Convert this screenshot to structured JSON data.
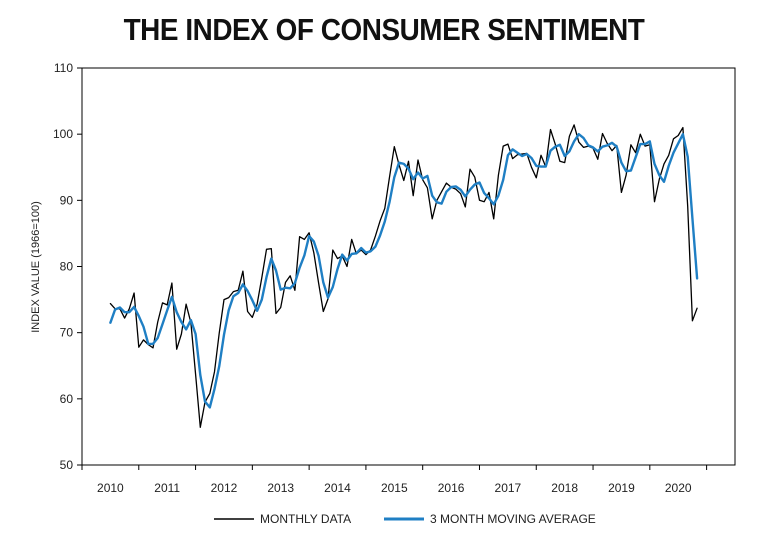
{
  "chart_data": {
    "type": "line",
    "title": "THE INDEX OF CONSUMER SENTIMENT",
    "xlabel": "",
    "ylabel": "INDEX VALUE (1966=100)",
    "ylim": [
      50,
      110
    ],
    "yticks": [
      50,
      60,
      70,
      80,
      90,
      100,
      110
    ],
    "xlim": [
      2009.5,
      2021.0
    ],
    "xticks": [
      2010,
      2011,
      2012,
      2013,
      2014,
      2015,
      2016,
      2017,
      2018,
      2019,
      2020
    ],
    "grid": false,
    "legend_position": "bottom-center",
    "series": [
      {
        "name": "MONTHLY DATA",
        "color": "#000000",
        "x": [
          2010.0,
          2010.083,
          2010.167,
          2010.25,
          2010.333,
          2010.417,
          2010.5,
          2010.583,
          2010.667,
          2010.75,
          2010.833,
          2010.917,
          2011.0,
          2011.083,
          2011.167,
          2011.25,
          2011.333,
          2011.417,
          2011.5,
          2011.583,
          2011.667,
          2011.75,
          2011.833,
          2011.917,
          2012.0,
          2012.083,
          2012.167,
          2012.25,
          2012.333,
          2012.417,
          2012.5,
          2012.583,
          2012.667,
          2012.75,
          2012.833,
          2012.917,
          2013.0,
          2013.083,
          2013.167,
          2013.25,
          2013.333,
          2013.417,
          2013.5,
          2013.583,
          2013.667,
          2013.75,
          2013.833,
          2013.917,
          2014.0,
          2014.083,
          2014.167,
          2014.25,
          2014.333,
          2014.417,
          2014.5,
          2014.583,
          2014.667,
          2014.75,
          2014.833,
          2014.917,
          2015.0,
          2015.083,
          2015.167,
          2015.25,
          2015.333,
          2015.417,
          2015.5,
          2015.583,
          2015.667,
          2015.75,
          2015.833,
          2015.917,
          2016.0,
          2016.083,
          2016.167,
          2016.25,
          2016.333,
          2016.417,
          2016.5,
          2016.583,
          2016.667,
          2016.75,
          2016.833,
          2016.917,
          2017.0,
          2017.083,
          2017.167,
          2017.25,
          2017.333,
          2017.417,
          2017.5,
          2017.583,
          2017.667,
          2017.75,
          2017.833,
          2017.917,
          2018.0,
          2018.083,
          2018.167,
          2018.25,
          2018.333,
          2018.417,
          2018.5,
          2018.583,
          2018.667,
          2018.75,
          2018.833,
          2018.917,
          2019.0,
          2019.083,
          2019.167,
          2019.25,
          2019.333,
          2019.417,
          2019.5,
          2019.583,
          2019.667,
          2019.75,
          2019.833,
          2019.917,
          2020.0,
          2020.083,
          2020.167,
          2020.25,
          2020.333
        ],
        "values": [
          74.4,
          73.6,
          73.6,
          72.2,
          73.6,
          76.0,
          67.8,
          68.9,
          68.2,
          67.7,
          71.6,
          74.5,
          74.2,
          77.5,
          67.5,
          69.8,
          74.3,
          71.5,
          63.7,
          55.7,
          59.5,
          60.8,
          64.1,
          69.9,
          75.0,
          75.3,
          76.2,
          76.4,
          79.3,
          73.2,
          72.3,
          74.3,
          78.3,
          82.6,
          82.7,
          72.9,
          73.8,
          77.6,
          78.6,
          76.4,
          84.5,
          84.1,
          85.1,
          82.1,
          77.5,
          73.2,
          75.1,
          82.5,
          81.2,
          81.6,
          80.0,
          84.1,
          81.9,
          82.5,
          81.8,
          82.5,
          84.6,
          86.9,
          88.8,
          93.6,
          98.1,
          95.4,
          93.0,
          95.9,
          90.7,
          96.1,
          93.1,
          91.9,
          87.2,
          90.0,
          91.3,
          92.6,
          92.0,
          91.7,
          91.0,
          89.0,
          94.7,
          93.5,
          90.0,
          89.8,
          91.2,
          87.2,
          93.8,
          98.2,
          98.5,
          96.3,
          96.9,
          97.0,
          97.1,
          95.0,
          93.4,
          96.8,
          95.1,
          100.7,
          98.5,
          95.9,
          95.7,
          99.7,
          101.4,
          98.8,
          98.0,
          98.2,
          97.9,
          96.2,
          100.1,
          98.6,
          97.5,
          98.3,
          91.2,
          93.8,
          98.4,
          97.2,
          100.0,
          98.2,
          98.4,
          89.8,
          93.2,
          95.5,
          96.8,
          99.3,
          99.8,
          101.0,
          89.1,
          71.8,
          73.7
        ]
      },
      {
        "name": "3 MONTH MOVING AVERAGE",
        "color": "#1f7fc4",
        "x": [
          2010.0,
          2010.083,
          2010.167,
          2010.25,
          2010.333,
          2010.417,
          2010.5,
          2010.583,
          2010.667,
          2010.75,
          2010.833,
          2010.917,
          2011.0,
          2011.083,
          2011.167,
          2011.25,
          2011.333,
          2011.417,
          2011.5,
          2011.583,
          2011.667,
          2011.75,
          2011.833,
          2011.917,
          2012.0,
          2012.083,
          2012.167,
          2012.25,
          2012.333,
          2012.417,
          2012.5,
          2012.583,
          2012.667,
          2012.75,
          2012.833,
          2012.917,
          2013.0,
          2013.083,
          2013.167,
          2013.25,
          2013.333,
          2013.417,
          2013.5,
          2013.583,
          2013.667,
          2013.75,
          2013.833,
          2013.917,
          2014.0,
          2014.083,
          2014.167,
          2014.25,
          2014.333,
          2014.417,
          2014.5,
          2014.583,
          2014.667,
          2014.75,
          2014.833,
          2014.917,
          2015.0,
          2015.083,
          2015.167,
          2015.25,
          2015.333,
          2015.417,
          2015.5,
          2015.583,
          2015.667,
          2015.75,
          2015.833,
          2015.917,
          2016.0,
          2016.083,
          2016.167,
          2016.25,
          2016.333,
          2016.417,
          2016.5,
          2016.583,
          2016.667,
          2016.75,
          2016.833,
          2016.917,
          2017.0,
          2017.083,
          2017.167,
          2017.25,
          2017.333,
          2017.417,
          2017.5,
          2017.583,
          2017.667,
          2017.75,
          2017.833,
          2017.917,
          2018.0,
          2018.083,
          2018.167,
          2018.25,
          2018.333,
          2018.417,
          2018.5,
          2018.583,
          2018.667,
          2018.75,
          2018.833,
          2018.917,
          2019.0,
          2019.083,
          2019.167,
          2019.25,
          2019.333,
          2019.417,
          2019.5,
          2019.583,
          2019.667,
          2019.75,
          2019.833,
          2019.917,
          2020.0,
          2020.083,
          2020.167,
          2020.25,
          2020.333
        ],
        "values": [
          71.5,
          73.5,
          73.8,
          73.1,
          73.1,
          73.9,
          72.5,
          70.9,
          68.3,
          68.3,
          69.2,
          71.3,
          73.4,
          75.4,
          73.1,
          71.6,
          70.5,
          71.9,
          69.8,
          63.6,
          59.6,
          58.7,
          61.5,
          64.9,
          69.7,
          73.4,
          75.5,
          76.0,
          77.3,
          76.3,
          74.9,
          73.3,
          75.0,
          78.4,
          81.2,
          79.4,
          76.5,
          76.8,
          76.7,
          77.5,
          79.8,
          81.7,
          84.6,
          83.8,
          81.6,
          77.6,
          75.3,
          76.9,
          79.6,
          81.8,
          80.9,
          81.9,
          82.0,
          82.8,
          82.1,
          82.3,
          83.0,
          84.7,
          86.8,
          89.8,
          93.5,
          95.7,
          95.5,
          94.8,
          93.2,
          94.2,
          93.3,
          93.7,
          90.7,
          89.7,
          89.5,
          91.3,
          92.0,
          92.1,
          91.6,
          90.6,
          91.6,
          92.4,
          92.7,
          91.1,
          90.3,
          89.4,
          90.7,
          93.1,
          96.8,
          97.7,
          97.2,
          96.7,
          97.0,
          96.4,
          95.2,
          95.1,
          95.1,
          97.5,
          98.1,
          98.4,
          96.7,
          97.4,
          98.9,
          100.0,
          99.4,
          98.3,
          98.0,
          97.4,
          98.1,
          98.3,
          98.7,
          98.1,
          95.7,
          94.4,
          94.5,
          96.5,
          98.5,
          98.5,
          98.9,
          95.5,
          93.8,
          92.8,
          95.2,
          97.2,
          98.6,
          100.0,
          96.6,
          87.3,
          78.2
        ]
      }
    ]
  }
}
